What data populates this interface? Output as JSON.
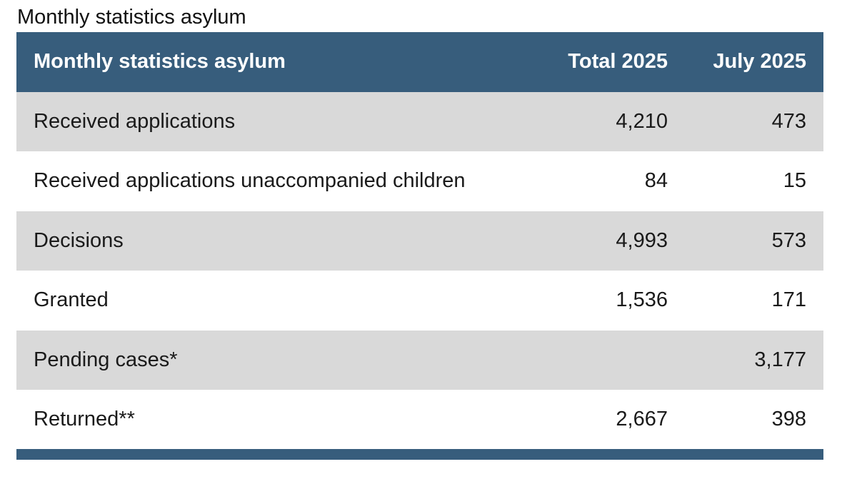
{
  "caption": "Monthly statistics asylum",
  "colors": {
    "header_bg": "#375d7c",
    "row_shaded": "#d9d9d9",
    "row_plain": "#ffffff"
  },
  "table": {
    "headers": [
      "Monthly statistics asylum",
      "Total 2025",
      "July 2025"
    ],
    "rows": [
      {
        "label": "Received applications",
        "total": "4,210",
        "month": "473"
      },
      {
        "label": "Received applications unaccompanied children",
        "total": "84",
        "month": "15"
      },
      {
        "label": "Decisions",
        "total": "4,993",
        "month": "573"
      },
      {
        "label": "Granted",
        "total": "1,536",
        "month": "171"
      },
      {
        "label": "Pending cases*",
        "total": "",
        "month": "3,177"
      },
      {
        "label": "Returned**",
        "total": "2,667",
        "month": "398"
      }
    ]
  }
}
